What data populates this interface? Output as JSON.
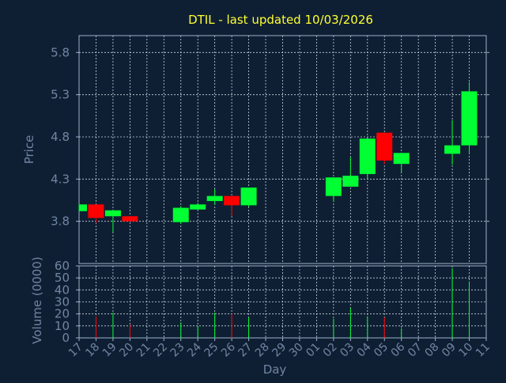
{
  "title": "DTIL - last updated 10/03/2026",
  "colors": {
    "background": "#0f1f33",
    "plot_border": "#9ab0c8",
    "grid": "#c8d4e0",
    "text": "#6f86a3",
    "title": "#ffff33",
    "up": "#00ff33",
    "down": "#ff0000"
  },
  "chart_data": [
    {
      "type": "candlestick",
      "ylabel": "Price",
      "xlabel": "Day",
      "ylim": [
        3.3,
        6.0
      ],
      "yticks": [
        "3.8",
        "4.3",
        "4.8",
        "5.3",
        "5.8"
      ],
      "xticks": [
        "17",
        "18",
        "19",
        "20",
        "21",
        "22",
        "23",
        "24",
        "25",
        "26",
        "27",
        "28",
        "29",
        "30",
        "01",
        "02",
        "03",
        "04",
        "05",
        "06",
        "07",
        "08",
        "09",
        "10",
        "11"
      ],
      "grid": true,
      "candles": [
        {
          "day": "17",
          "open": 3.92,
          "close": 4.0,
          "high": 4.0,
          "low": 3.92
        },
        {
          "day": "18",
          "open": 4.0,
          "close": 3.84,
          "high": 4.0,
          "low": 3.78
        },
        {
          "day": "19",
          "open": 3.86,
          "close": 3.93,
          "high": 3.93,
          "low": 3.67
        },
        {
          "day": "20",
          "open": 3.86,
          "close": 3.8,
          "high": 3.86,
          "low": 3.8
        },
        {
          "day": "23",
          "open": 3.79,
          "close": 3.96,
          "high": 3.98,
          "low": 3.77
        },
        {
          "day": "24",
          "open": 3.94,
          "close": 4.0,
          "high": 4.02,
          "low": 3.94
        },
        {
          "day": "25",
          "open": 4.04,
          "close": 4.1,
          "high": 4.18,
          "low": 4.0
        },
        {
          "day": "26",
          "open": 4.1,
          "close": 3.99,
          "high": 4.1,
          "low": 3.86
        },
        {
          "day": "27",
          "open": 3.99,
          "close": 4.2,
          "high": 4.2,
          "low": 3.97
        },
        {
          "day": "02",
          "open": 4.1,
          "close": 4.32,
          "high": 4.32,
          "low": 4.03
        },
        {
          "day": "03",
          "open": 4.21,
          "close": 4.34,
          "high": 4.56,
          "low": 4.21
        },
        {
          "day": "04",
          "open": 4.36,
          "close": 4.78,
          "high": 4.78,
          "low": 4.3
        },
        {
          "day": "05",
          "open": 4.85,
          "close": 4.52,
          "high": 4.85,
          "low": 4.48
        },
        {
          "day": "06",
          "open": 4.48,
          "close": 4.61,
          "high": 4.61,
          "low": 4.38
        },
        {
          "day": "09",
          "open": 4.6,
          "close": 4.7,
          "high": 5.0,
          "low": 4.47
        },
        {
          "day": "10",
          "open": 4.7,
          "close": 5.34,
          "high": 5.45,
          "low": 4.6
        }
      ]
    },
    {
      "type": "bar",
      "ylabel": "Volume (0000)",
      "xlabel": "Day",
      "ylim": [
        0,
        60
      ],
      "yticks": [
        "0",
        "10",
        "20",
        "30",
        "40",
        "50",
        "60"
      ],
      "bars": [
        {
          "day": "18",
          "value": 18,
          "direction": "down"
        },
        {
          "day": "19",
          "value": 21,
          "direction": "up"
        },
        {
          "day": "20",
          "value": 11,
          "direction": "down"
        },
        {
          "day": "23",
          "value": 13,
          "direction": "up"
        },
        {
          "day": "24",
          "value": 10,
          "direction": "up"
        },
        {
          "day": "25",
          "value": 21,
          "direction": "up"
        },
        {
          "day": "26",
          "value": 20,
          "direction": "down"
        },
        {
          "day": "27",
          "value": 17,
          "direction": "up"
        },
        {
          "day": "02",
          "value": 16,
          "direction": "up"
        },
        {
          "day": "03",
          "value": 25,
          "direction": "up"
        },
        {
          "day": "04",
          "value": 18,
          "direction": "up"
        },
        {
          "day": "05",
          "value": 17,
          "direction": "down"
        },
        {
          "day": "06",
          "value": 8,
          "direction": "up"
        },
        {
          "day": "09",
          "value": 58,
          "direction": "up"
        },
        {
          "day": "10",
          "value": 47,
          "direction": "up"
        }
      ]
    }
  ]
}
